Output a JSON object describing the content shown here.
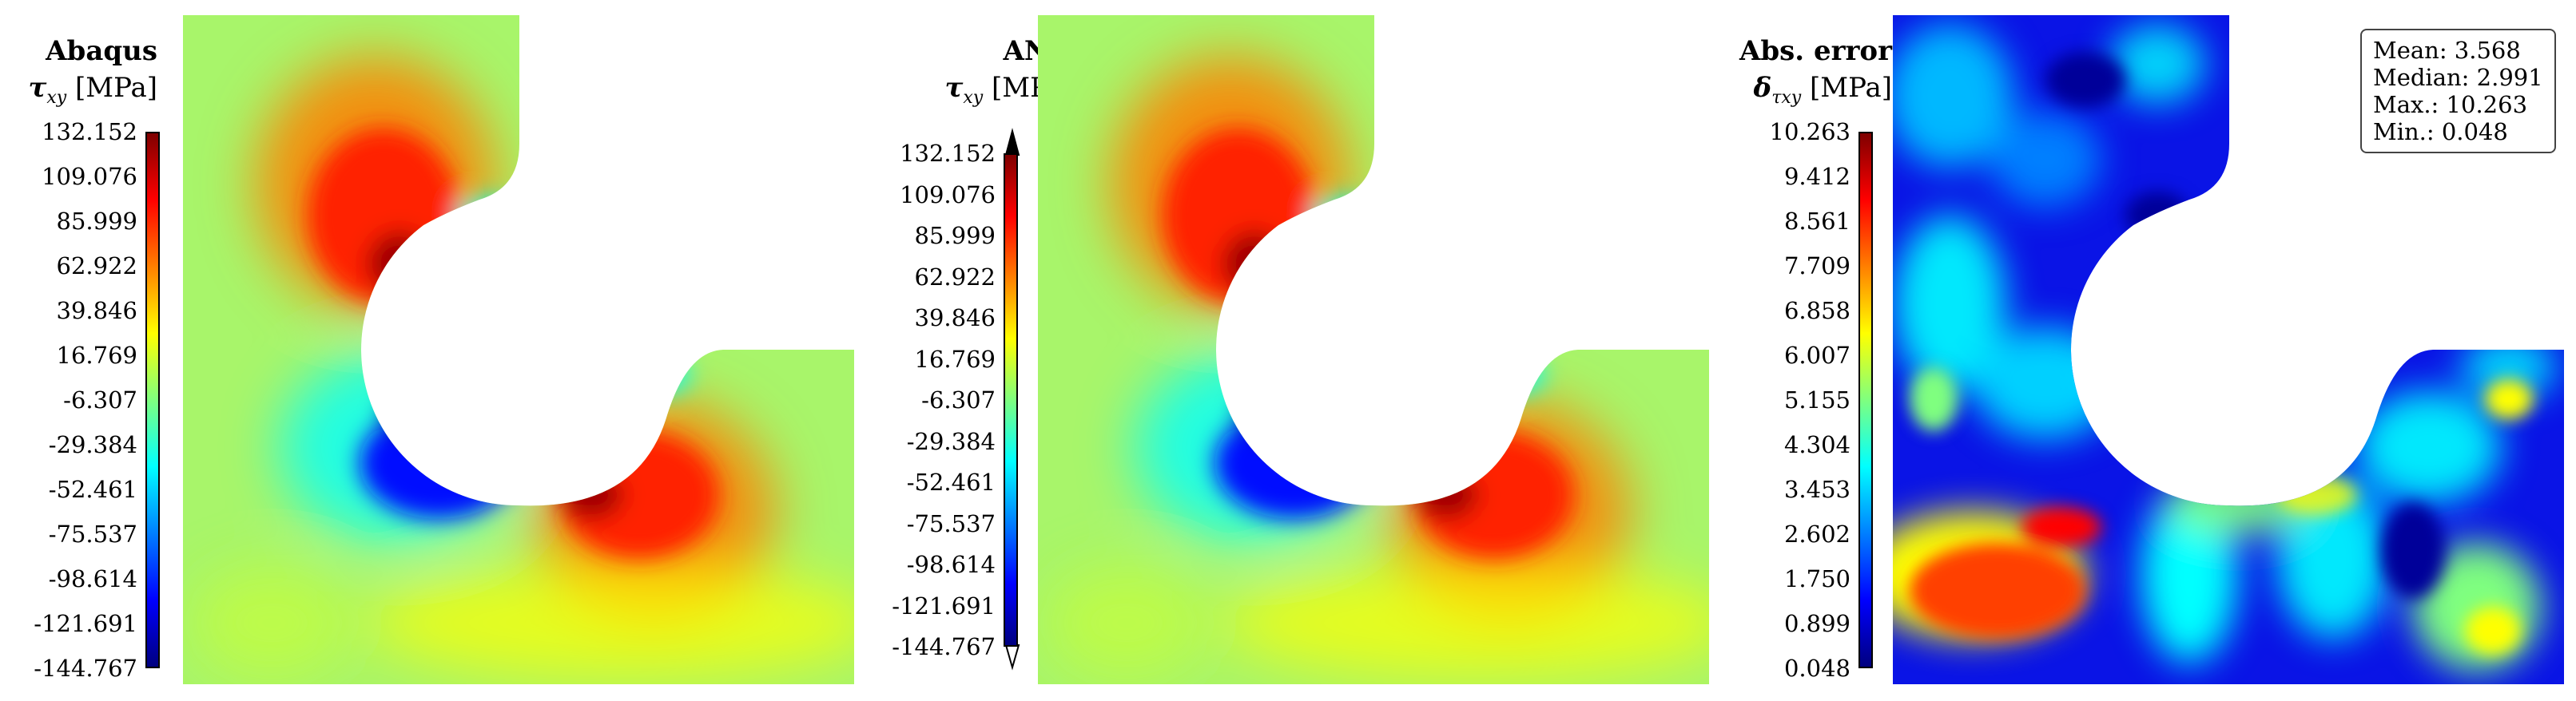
{
  "colors": {
    "jet": [
      "#00007f",
      "#0000ff",
      "#007fff",
      "#00ffff",
      "#7fff7f",
      "#ffff00",
      "#ff7f00",
      "#ff0000",
      "#7f0000"
    ],
    "background_field": "#a8f56a"
  },
  "chart_data": [
    {
      "type": "heatmap",
      "title": "Abaqus",
      "quantity": "τ",
      "quantity_sub": "xy",
      "unit": "[MPa]",
      "colorbar_ticks": [
        "132.152",
        "109.076",
        "85.999",
        "62.922",
        "39.846",
        "16.769",
        "-6.307",
        "-29.384",
        "-52.461",
        "-75.537",
        "-98.614",
        "-121.691",
        "-144.767"
      ],
      "vmin": -144.767,
      "vmax": 132.152,
      "extend_arrows": false
    },
    {
      "type": "heatmap",
      "title": "ANN",
      "quantity": "τ",
      "quantity_sub": "xy",
      "unit": "[MPa]",
      "colorbar_ticks": [
        "132.152",
        "109.076",
        "85.999",
        "62.922",
        "39.846",
        "16.769",
        "-6.307",
        "-29.384",
        "-52.461",
        "-75.537",
        "-98.614",
        "-121.691",
        "-144.767"
      ],
      "vmin": -144.767,
      "vmax": 132.152,
      "extend_arrows": true
    },
    {
      "type": "heatmap",
      "title": "Abs. error",
      "quantity": "δ",
      "quantity_sub": "τxy",
      "unit": "[MPa]",
      "colorbar_ticks": [
        "10.263",
        "9.412",
        "8.561",
        "7.709",
        "6.858",
        "6.007",
        "5.155",
        "4.304",
        "3.453",
        "2.602",
        "1.750",
        "0.899",
        "0.048"
      ],
      "vmin": 0.048,
      "vmax": 10.263,
      "extend_arrows": false,
      "stats": {
        "mean": "Mean: 3.568",
        "median": "Median: 2.991",
        "max": "Max.: 10.263",
        "min": "Min.: 0.048"
      }
    }
  ]
}
